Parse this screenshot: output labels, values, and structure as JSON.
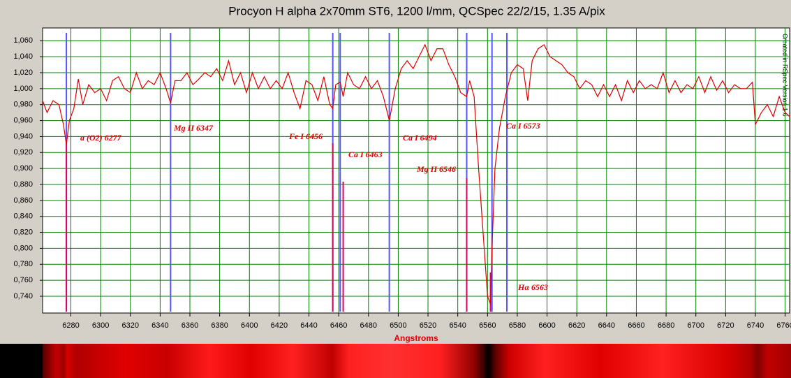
{
  "chart_data": {
    "type": "line",
    "title": "Procyon H alpha 2x70mm ST6, 1200 l/mm, QCSpec 22/2/15, 1.35 A/pix",
    "x_label": "Angstroms",
    "side_note": "Created in RSpec Version 1.6",
    "color": "#e00000",
    "grid": true,
    "xlim": [
      6261,
      6763
    ],
    "xticks": [
      6280,
      6300,
      6320,
      6340,
      6360,
      6380,
      6400,
      6420,
      6440,
      6460,
      6480,
      6500,
      6520,
      6540,
      6560,
      6580,
      6600,
      6620,
      6640,
      6660,
      6680,
      6700,
      6720,
      6740,
      6760
    ],
    "ylim": [
      0.719,
      1.076
    ],
    "yticks": [
      {
        "value": 0.74,
        "label": "0,740"
      },
      {
        "value": 0.76,
        "label": "0,760"
      },
      {
        "value": 0.78,
        "label": "0,780"
      },
      {
        "value": 0.8,
        "label": "0,800"
      },
      {
        "value": 0.82,
        "label": "0,820"
      },
      {
        "value": 0.84,
        "label": "0,840"
      },
      {
        "value": 0.86,
        "label": "0,860"
      },
      {
        "value": 0.88,
        "label": "0,880"
      },
      {
        "value": 0.9,
        "label": "0,900"
      },
      {
        "value": 0.92,
        "label": "0,920"
      },
      {
        "value": 0.94,
        "label": "0,940"
      },
      {
        "value": 0.96,
        "label": "0,960"
      },
      {
        "value": 0.98,
        "label": "0,980"
      },
      {
        "value": 1.0,
        "label": "1,000"
      },
      {
        "value": 1.02,
        "label": "1,020"
      },
      {
        "value": 1.04,
        "label": "1,040"
      },
      {
        "value": 1.06,
        "label": "1,060"
      }
    ],
    "x": [
      6261,
      6264,
      6268,
      6272,
      6275,
      6277,
      6279,
      6282,
      6285,
      6288,
      6292,
      6296,
      6300,
      6304,
      6308,
      6312,
      6316,
      6320,
      6324,
      6328,
      6332,
      6336,
      6340,
      6344,
      6347,
      6350,
      6354,
      6358,
      6362,
      6366,
      6370,
      6374,
      6378,
      6382,
      6386,
      6390,
      6394,
      6398,
      6402,
      6406,
      6410,
      6414,
      6418,
      6422,
      6426,
      6430,
      6434,
      6438,
      6442,
      6446,
      6450,
      6454,
      6456,
      6458,
      6461,
      6463,
      6466,
      6470,
      6474,
      6478,
      6482,
      6486,
      6490,
      6494,
      6498,
      6502,
      6506,
      6510,
      6514,
      6518,
      6522,
      6526,
      6530,
      6534,
      6538,
      6542,
      6546,
      6548,
      6551,
      6554,
      6557,
      6560,
      6562,
      6563,
      6565,
      6568,
      6572,
      6576,
      6580,
      6584,
      6587,
      6590,
      6594,
      6598,
      6602,
      6606,
      6610,
      6614,
      6618,
      6622,
      6626,
      6630,
      6634,
      6638,
      6642,
      6646,
      6650,
      6654,
      6658,
      6662,
      6666,
      6670,
      6674,
      6678,
      6682,
      6686,
      6690,
      6694,
      6698,
      6702,
      6706,
      6710,
      6714,
      6718,
      6722,
      6726,
      6730,
      6734,
      6738,
      6740,
      6744,
      6748,
      6752,
      6756,
      6760,
      6763
    ],
    "values": [
      0.985,
      0.97,
      0.985,
      0.98,
      0.955,
      0.93,
      0.96,
      0.975,
      1.012,
      0.98,
      1.005,
      0.995,
      1.0,
      0.985,
      1.01,
      1.015,
      1.0,
      0.995,
      1.02,
      1.0,
      1.01,
      1.005,
      1.02,
      1.0,
      0.982,
      1.01,
      1.01,
      1.02,
      1.005,
      1.012,
      1.02,
      1.015,
      1.025,
      1.01,
      1.035,
      1.005,
      1.02,
      0.995,
      1.02,
      1.0,
      1.015,
      1.0,
      1.01,
      1.0,
      1.02,
      0.995,
      0.975,
      1.01,
      1.005,
      0.985,
      1.015,
      0.98,
      0.975,
      1.005,
      1.008,
      0.99,
      1.02,
      1.005,
      1.0,
      1.015,
      1.0,
      1.01,
      0.99,
      0.96,
      1.0,
      1.025,
      1.035,
      1.025,
      1.04,
      1.055,
      1.035,
      1.05,
      1.05,
      1.03,
      1.015,
      0.995,
      0.99,
      1.01,
      0.99,
      0.9,
      0.82,
      0.74,
      0.73,
      0.8,
      0.9,
      0.95,
      0.99,
      1.02,
      1.03,
      1.025,
      0.985,
      1.035,
      1.05,
      1.055,
      1.04,
      1.035,
      1.03,
      1.02,
      1.015,
      1.0,
      1.01,
      1.005,
      0.99,
      1.005,
      0.99,
      1.005,
      0.985,
      1.01,
      0.995,
      1.01,
      1.0,
      1.005,
      1.0,
      1.02,
      0.995,
      1.01,
      0.995,
      1.005,
      1.0,
      1.015,
      0.995,
      1.015,
      0.998,
      1.01,
      0.995,
      1.005,
      1.0,
      1.0,
      1.008,
      0.955,
      0.97,
      0.98,
      0.965,
      0.99,
      0.97,
      0.965
    ],
    "reference_lines": [
      6277,
      6347,
      6456,
      6461,
      6494,
      6546,
      6563,
      6573
    ],
    "annotations": [
      {
        "text": "a (O2) 6277",
        "x": 6277
      },
      {
        "text": "Mg II 6347",
        "x": 6347
      },
      {
        "text": "Fe I 6456",
        "x": 6456
      },
      {
        "text": "Ca I 6463",
        "x": 6463
      },
      {
        "text": "Ca I 6494",
        "x": 6494
      },
      {
        "text": "Mg II 6546",
        "x": 6546
      },
      {
        "text": "Ca I 6573",
        "x": 6573
      },
      {
        "text": "Hα 6563",
        "x": 6563
      }
    ],
    "identified_lines": [
      6277,
      6456,
      6463,
      6546,
      6562
    ]
  }
}
